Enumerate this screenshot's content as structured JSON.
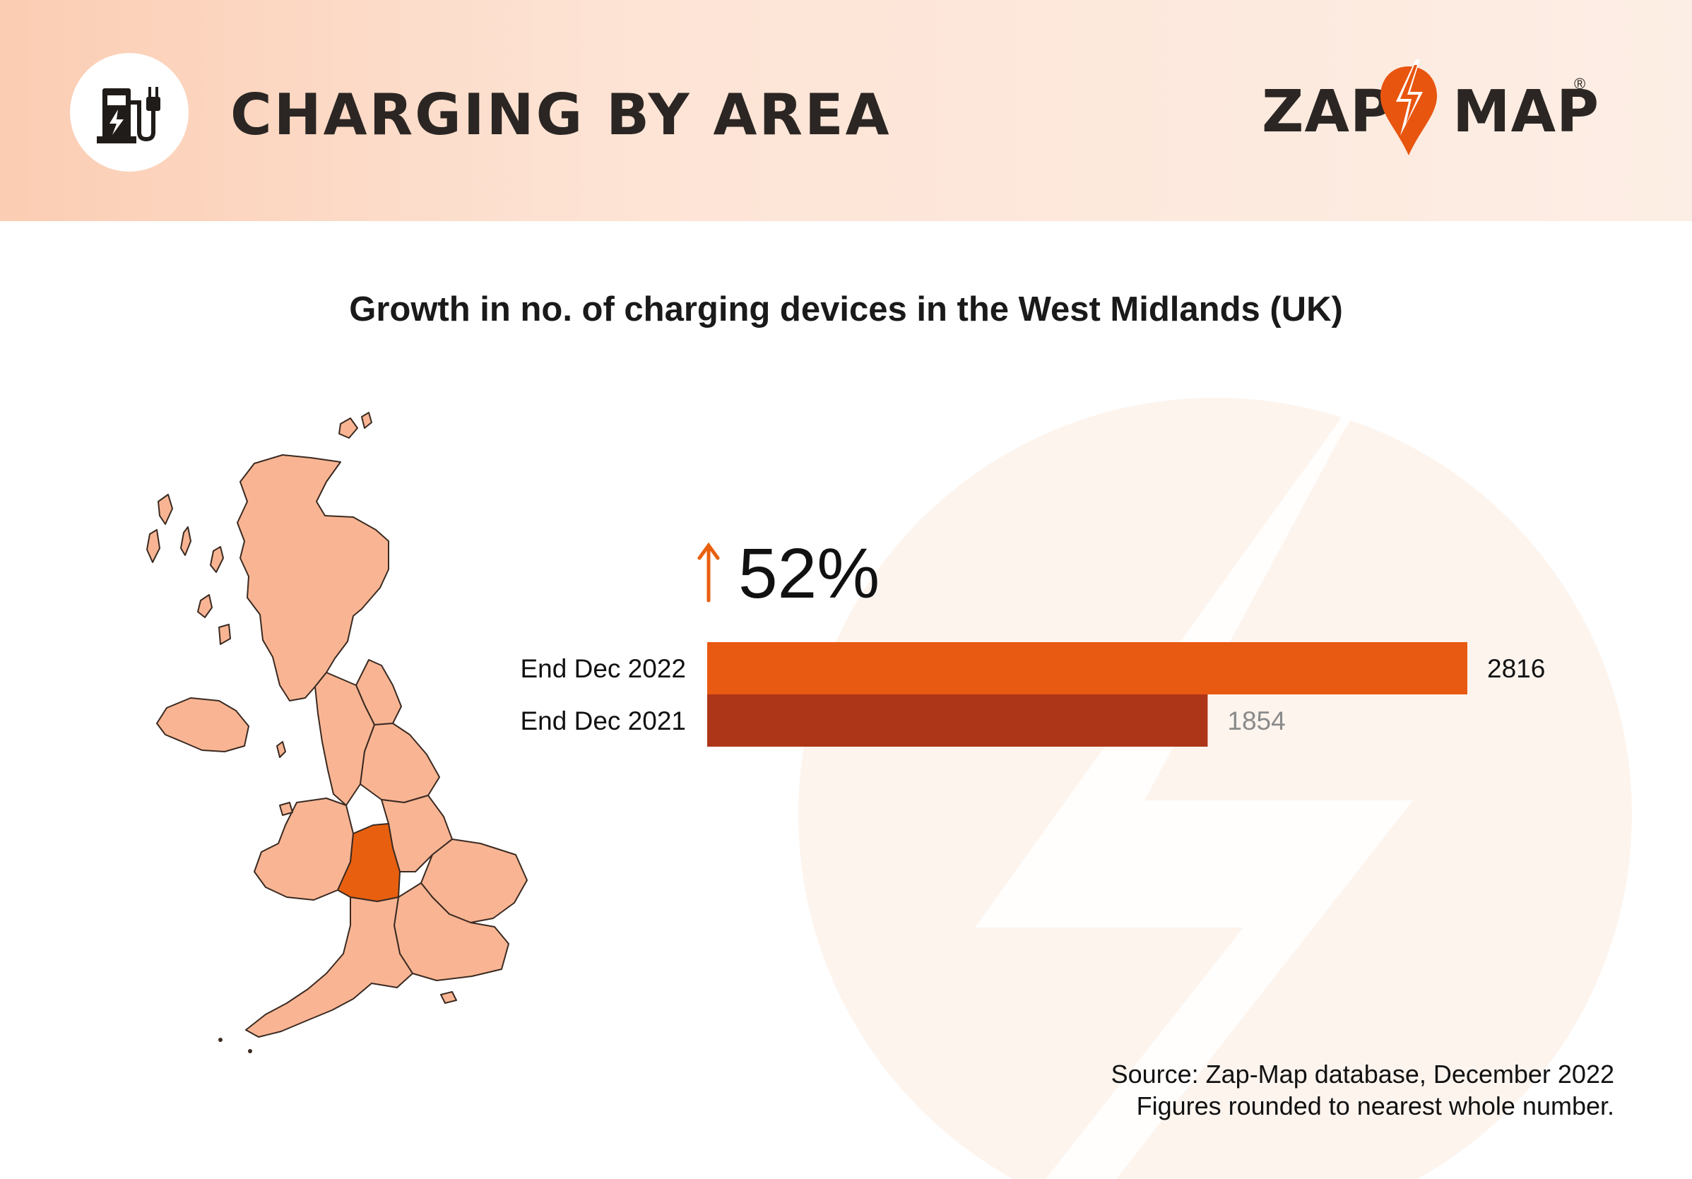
{
  "header": {
    "title": "CHARGING BY AREA",
    "icon": "ev-charger-icon",
    "logo": {
      "text_left": "ZAP",
      "text_right": "MAP",
      "registered": "®",
      "bolt_color": "#e8550f"
    }
  },
  "colors": {
    "bar_2022": "#e85a12",
    "bar_2021": "#ae3618",
    "region_default": "#f9b593",
    "region_highlight": "#e8600f",
    "header_bg": "#fde3d4"
  },
  "chart_data": {
    "type": "bar",
    "orientation": "horizontal",
    "title": "Growth in no. of charging devices in the West Midlands (UK)",
    "categories": [
      "End Dec 2022",
      "End Dec 2021"
    ],
    "values": [
      2816,
      1854
    ],
    "value_labels": [
      "2816",
      "1854"
    ],
    "xlim": [
      0,
      2816
    ],
    "grid": false,
    "annotation": {
      "text": "52%",
      "icon": "up-arrow-icon"
    }
  },
  "map": {
    "highlighted_region": "West Midlands"
  },
  "footer": {
    "source": "Source: Zap-Map database, December 2022",
    "note": "Figures rounded to nearest whole number."
  }
}
